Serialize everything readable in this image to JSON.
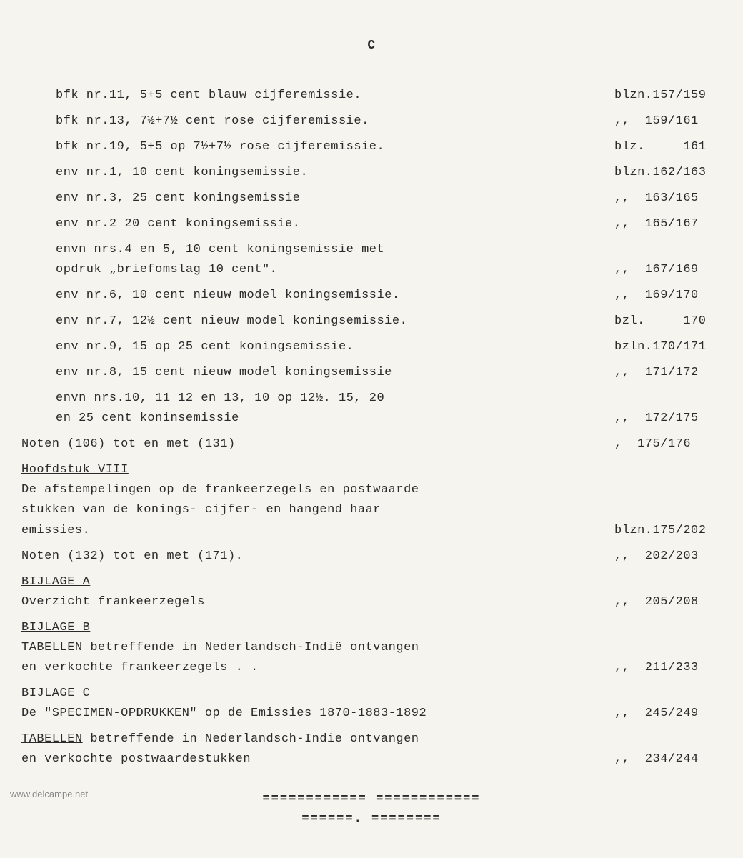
{
  "page_marker": "C",
  "entries": [
    {
      "text": "bfk nr.11, 5+5 cent blauw cijferemissie.",
      "pageref": "blzn.157/159",
      "indent": true
    },
    {
      "text": "bfk nr.13, 7½+7½ cent rose cijferemissie.",
      "pageref": ",,  159/161",
      "indent": true
    },
    {
      "text": "bfk nr.19, 5+5 op 7½+7½ rose cijferemissie.",
      "pageref": "blz.     161",
      "indent": true
    },
    {
      "text": "env nr.1, 10 cent koningsemissie.",
      "pageref": "blzn.162/163",
      "indent": true
    },
    {
      "text": "env nr.3, 25 cent koningsemissie",
      "pageref": ",,  163/165",
      "indent": true
    },
    {
      "text": "env nr.2  20 cent koningsemissie.",
      "pageref": ",,  165/167",
      "indent": true
    }
  ],
  "multi_entries": [
    {
      "lines": [
        {
          "text": "envn nrs.4 en 5, 10 cent koningsemissie met",
          "pageref": ""
        },
        {
          "text": "opdruk „briefomslag 10 cent\".",
          "pageref": ",,  167/169"
        }
      ],
      "indent": true
    }
  ],
  "entries2": [
    {
      "text": "env nr.6, 10 cent nieuw model koningsemissie.",
      "pageref": ",,  169/170",
      "indent": true
    },
    {
      "text": "env nr.7, 12½ cent nieuw model koningsemissie.",
      "pageref": "bzl.     170",
      "indent": true
    },
    {
      "text": "env nr.9, 15 op 25 cent koningsemissie.",
      "pageref": "bzln.170/171",
      "indent": true
    },
    {
      "text": "env nr.8, 15 cent nieuw model koningsemissie",
      "pageref": ",,  171/172",
      "indent": true
    }
  ],
  "multi_entries2": [
    {
      "lines": [
        {
          "text": "envn nrs.10, 11 12 en 13, 10 op 12½. 15, 20",
          "pageref": ""
        },
        {
          "text": "en 25 cent koninsemissie",
          "pageref": ",,  172/175"
        }
      ],
      "indent": true
    }
  ],
  "entries3": [
    {
      "text": "Noten (106) tot en met (131)",
      "pageref": ",  175/176",
      "indent": false
    }
  ],
  "sections": [
    {
      "title": "Hoofdstuk VIII",
      "body": "De afstempelingen op de frankeerzegels en postwaarde\nstukken van de konings-  cijfer- en hangend haar\nemissies.",
      "pageref": "blzn.175/202"
    }
  ],
  "entries4": [
    {
      "text": "Noten (132) tot en met (171).",
      "pageref": ",,  202/203",
      "indent": false
    }
  ],
  "sections2": [
    {
      "title": "BIJLAGE A",
      "body": "Overzicht  frankeerzegels",
      "pageref": ",,  205/208"
    },
    {
      "title": "BIJLAGE B",
      "body": "TABELLEN betreffende in Nederlandsch-Indië ontvangen\nen verkochte frankeerzegels . .",
      "pageref": ",,  211/233"
    },
    {
      "title": "BIJLAGE C",
      "body": "De \"SPECIMEN-OPDRUKKEN\" op de Emissies 1870-1883-1892",
      "pageref": ",,  245/249"
    }
  ],
  "sections3": [
    {
      "body": "TABELLEN betreffende in Nederlandsch-Indie ontvangen\nen verkochte postwaardestukken",
      "pageref": ",,  234/244",
      "underline_first_word": true
    }
  ],
  "separator": "============ ============",
  "separator2": "======. ========",
  "watermark": "www.delcampe.net"
}
